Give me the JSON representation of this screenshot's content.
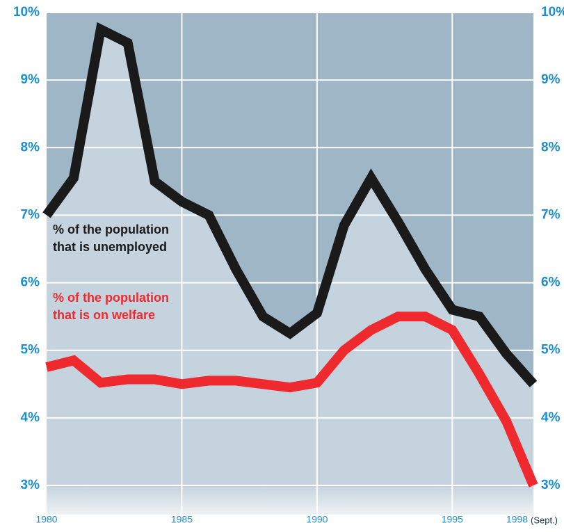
{
  "chart_data": {
    "type": "line",
    "x": [
      1980,
      1981,
      1982,
      1983,
      1984,
      1985,
      1986,
      1987,
      1988,
      1989,
      1990,
      1991,
      1992,
      1993,
      1994,
      1995,
      1996,
      1997,
      1998
    ],
    "series": [
      {
        "name": [
          "% of the population",
          "that is unemployed"
        ],
        "color": "#1a1a1a",
        "values": [
          7.0,
          7.55,
          9.75,
          9.55,
          7.5,
          7.2,
          7.0,
          6.2,
          5.5,
          5.25,
          5.55,
          6.85,
          7.55,
          6.9,
          6.2,
          5.6,
          5.5,
          4.95,
          4.5
        ]
      },
      {
        "name": [
          "% of the population",
          "that is on welfare"
        ],
        "color": "#ee2a2f",
        "values": [
          4.75,
          4.85,
          4.52,
          4.57,
          4.57,
          4.5,
          4.55,
          4.55,
          4.5,
          4.45,
          4.52,
          5.0,
          5.3,
          5.5,
          5.5,
          5.3,
          4.65,
          3.95,
          3.0
        ]
      }
    ],
    "xlim": [
      1980,
      1998
    ],
    "xticks": [
      1980,
      1985,
      1990,
      1995,
      1998
    ],
    "x_note": "(Sept.)",
    "ylim": [
      3,
      10
    ],
    "yticks": [
      {
        "value": 3,
        "label": "3%"
      },
      {
        "value": 4,
        "label": "4%"
      },
      {
        "value": 5,
        "label": "5%"
      },
      {
        "value": 6,
        "label": "6%"
      },
      {
        "value": 7,
        "label": "7%"
      },
      {
        "value": 8,
        "label": "8%"
      },
      {
        "value": 9,
        "label": "9%"
      },
      {
        "value": 10,
        "label": "10%"
      }
    ],
    "grid": true
  }
}
